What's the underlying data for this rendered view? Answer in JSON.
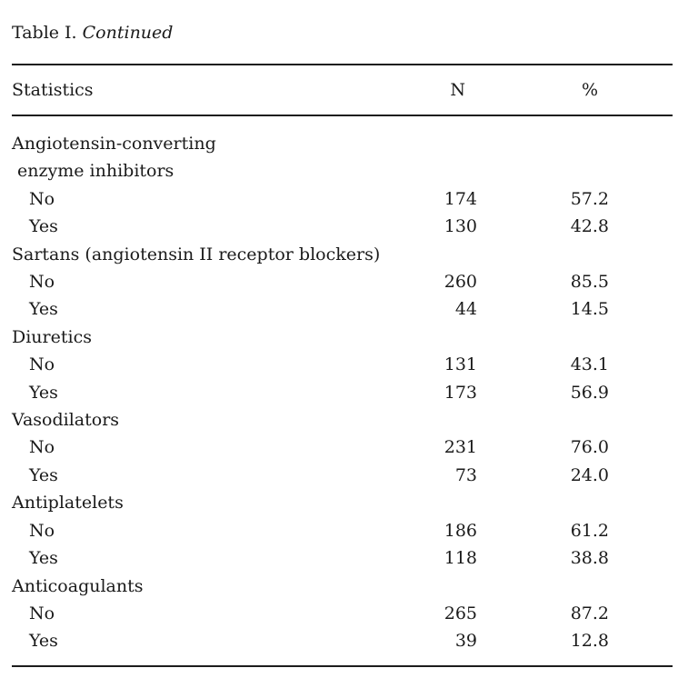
{
  "title": {
    "label": "Table I. ",
    "continued": "Continued"
  },
  "table": {
    "columns": {
      "statistics": "Statistics",
      "n": "N",
      "percent": "%"
    },
    "sections": [
      {
        "label_lines": [
          "Angiotensin-converting",
          "enzyme inhibitors"
        ],
        "rows": [
          {
            "label": "No",
            "n": "174",
            "percent": "57.2"
          },
          {
            "label": "Yes",
            "n": "130",
            "percent": "42.8"
          }
        ]
      },
      {
        "label_lines": [
          "Sartans (angiotensin II receptor blockers)"
        ],
        "rows": [
          {
            "label": "No",
            "n": "260",
            "percent": "85.5"
          },
          {
            "label": "Yes",
            "n": "44",
            "percent": "14.5"
          }
        ]
      },
      {
        "label_lines": [
          "Diuretics"
        ],
        "rows": [
          {
            "label": "No",
            "n": "131",
            "percent": "43.1"
          },
          {
            "label": "Yes",
            "n": "173",
            "percent": "56.9"
          }
        ]
      },
      {
        "label_lines": [
          "Vasodilators"
        ],
        "rows": [
          {
            "label": "No",
            "n": "231",
            "percent": "76.0"
          },
          {
            "label": "Yes",
            "n": "73",
            "percent": "24.0"
          }
        ]
      },
      {
        "label_lines": [
          "Antiplatelets"
        ],
        "rows": [
          {
            "label": "No",
            "n": "186",
            "percent": "61.2"
          },
          {
            "label": "Yes",
            "n": "118",
            "percent": "38.8"
          }
        ]
      },
      {
        "label_lines": [
          "Anticoagulants"
        ],
        "rows": [
          {
            "label": "No",
            "n": "265",
            "percent": "87.2"
          },
          {
            "label": "Yes",
            "n": "39",
            "percent": "12.8"
          }
        ]
      }
    ]
  }
}
